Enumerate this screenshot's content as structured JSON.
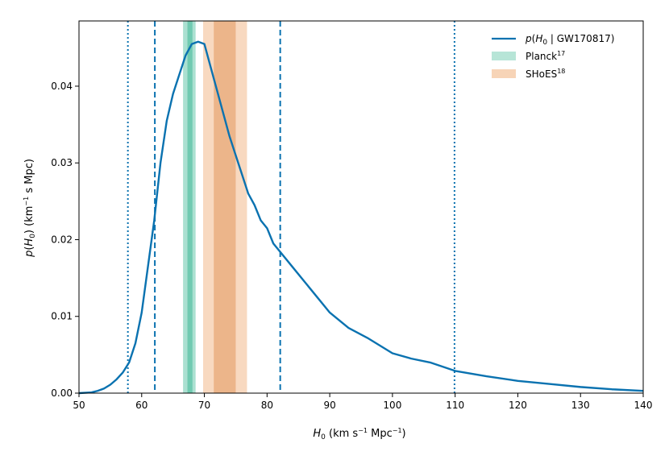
{
  "chart_data": {
    "type": "line",
    "xlabel": "H_0 (km s^-1 Mpc^-1)",
    "ylabel": "p(H_0) (km^-1 s Mpc)",
    "xlim": [
      50,
      140
    ],
    "ylim": [
      0,
      0.0485
    ],
    "xticks": [
      50,
      60,
      70,
      80,
      90,
      100,
      110,
      120,
      130,
      140
    ],
    "xtick_labels": [
      "50",
      "60",
      "70",
      "80",
      "90",
      "100",
      "110",
      "120",
      "130",
      "140"
    ],
    "yticks": [
      0.0,
      0.01,
      0.02,
      0.03,
      0.04
    ],
    "ytick_labels": [
      "0.00",
      "0.01",
      "0.02",
      "0.03",
      "0.04"
    ],
    "colors": {
      "posterior": "#0a72b0",
      "planck": "#87d3bd",
      "planck_inner": "#5cc3a5",
      "shoes": "#f5c9a5",
      "shoes_inner": "#e8a878"
    },
    "series": [
      {
        "name": "p(H_0 | GW170817)",
        "x": [
          50,
          52,
          53,
          54,
          55,
          56,
          57,
          58,
          59,
          60,
          61,
          62,
          63,
          64,
          65,
          66,
          67,
          68,
          69,
          70,
          71,
          72,
          73,
          74,
          75,
          76,
          77,
          78,
          79,
          80,
          81,
          82,
          84,
          86,
          88,
          90,
          93,
          96,
          100,
          103,
          106,
          110,
          115,
          120,
          125,
          130,
          135,
          140
        ],
        "y": [
          0,
          0.0001,
          0.0003,
          0.0006,
          0.0011,
          0.0018,
          0.0027,
          0.004,
          0.0065,
          0.0105,
          0.0165,
          0.0225,
          0.03,
          0.0355,
          0.039,
          0.0415,
          0.044,
          0.0455,
          0.0458,
          0.0455,
          0.0425,
          0.0395,
          0.0365,
          0.0335,
          0.031,
          0.0285,
          0.026,
          0.0245,
          0.0225,
          0.0215,
          0.0195,
          0.0185,
          0.0165,
          0.0145,
          0.0125,
          0.0105,
          0.0085,
          0.0072,
          0.0052,
          0.0045,
          0.004,
          0.0029,
          0.0022,
          0.0016,
          0.0012,
          0.0008,
          0.0005,
          0.0003
        ]
      }
    ],
    "vlines": [
      {
        "x": 57.8,
        "style": "dotted",
        "meaning": "lower 95% interval"
      },
      {
        "x": 62.1,
        "style": "dashed",
        "meaning": "lower 68% interval"
      },
      {
        "x": 82.1,
        "style": "dashed",
        "meaning": "upper 68% interval"
      },
      {
        "x": 109.9,
        "style": "dotted",
        "meaning": "upper 95% interval"
      }
    ],
    "bands": [
      {
        "name": "Planck",
        "outer": [
          66.6,
          68.6
        ],
        "inner": [
          67.3,
          68.1
        ]
      },
      {
        "name": "SHoES",
        "outer": [
          69.8,
          76.8
        ],
        "inner": [
          71.5,
          75.0
        ]
      }
    ],
    "legend": {
      "position": "top-right",
      "entries": [
        {
          "label_main": "p(H",
          "label_sub": "0",
          "label_rest": " | GW170817)",
          "kind": "line"
        },
        {
          "label_main": "Planck",
          "label_sup": "17",
          "kind": "patch"
        },
        {
          "label_main": "SHoES",
          "label_sup": "18",
          "kind": "patch"
        }
      ]
    }
  }
}
